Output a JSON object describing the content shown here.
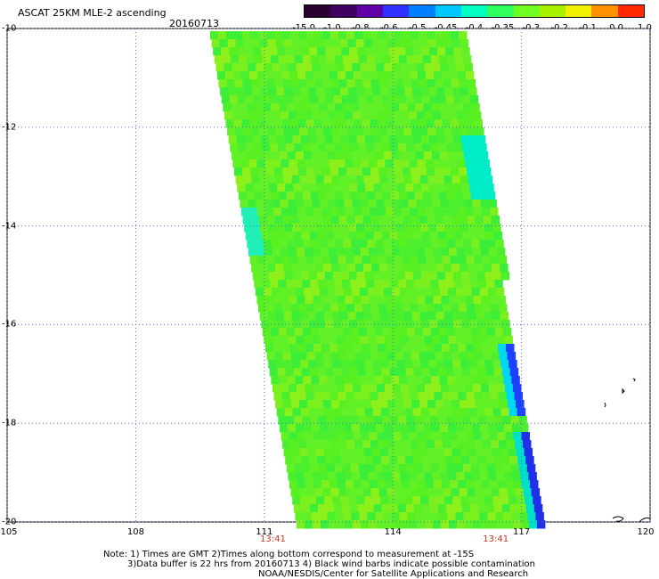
{
  "header": {
    "title": "ASCAT 25KM MLE-2 ascending",
    "date": "20160713"
  },
  "colorbar": {
    "labels": [
      "-15.0",
      "-1.0",
      "-0.8",
      "-0.6",
      "-0.5",
      "-0.45",
      "-0.4",
      "-0.35",
      "-0.3",
      "-0.2",
      "-0.1",
      "0.0",
      "1.0"
    ],
    "colors": [
      "#2a0030",
      "#400060",
      "#6000a8",
      "#3030ff",
      "#0080ff",
      "#00c8ff",
      "#00ffc0",
      "#30ff60",
      "#70ff20",
      "#a8f000",
      "#f0f000",
      "#ff9000",
      "#ff2800"
    ]
  },
  "chart_data": {
    "type": "heatmap",
    "lon_ticks": [
      "105",
      "108",
      "111",
      "114",
      "117",
      "120"
    ],
    "lat_ticks": [
      "-10",
      "-12",
      "-14",
      "-16",
      "-18",
      "-20"
    ],
    "xlim": [
      105,
      120
    ],
    "ylim": [
      -20,
      -10
    ],
    "swath_times": [
      "13:41",
      "13:41"
    ],
    "swath_time_positions_lon": [
      111.2,
      116.4
    ]
  },
  "notes": {
    "line1": "Note: 1) Times are GMT 2)Times along bottom correspond to measurement at -15S",
    "line2": "3)Data buffer is 22 hrs from 20160713 4) Black wind barbs indicate possible contamination",
    "line3": "NOAA/NESDIS/Center for Satellite Applications and Research"
  }
}
